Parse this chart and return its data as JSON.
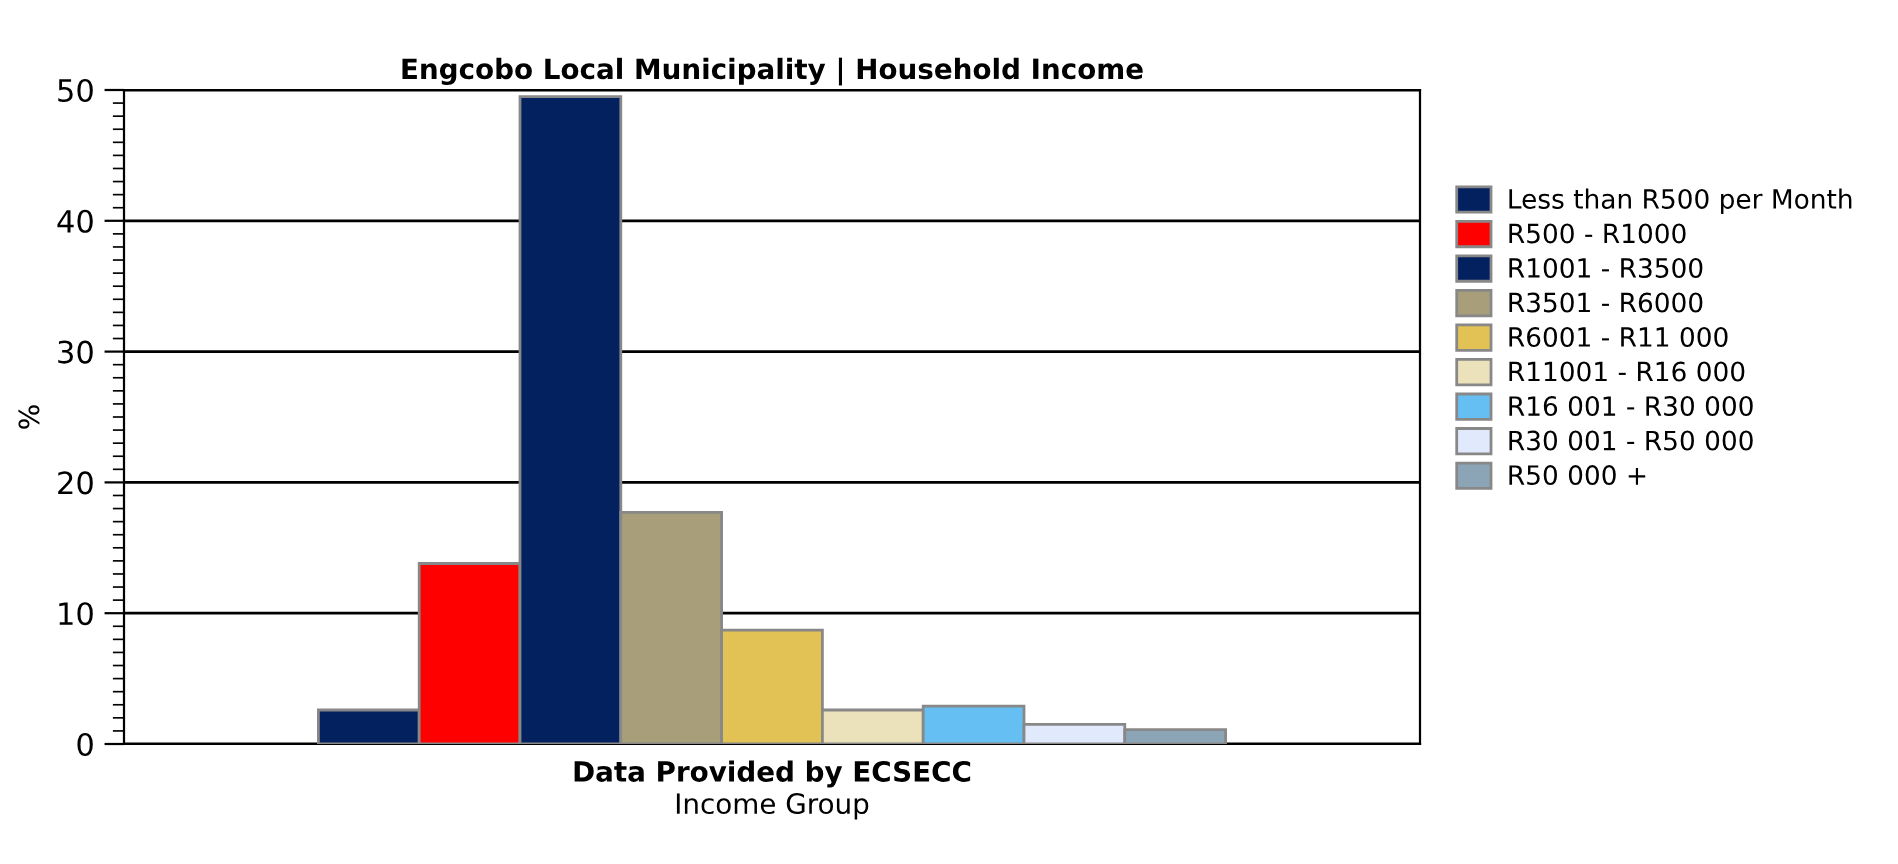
{
  "chart_data": {
    "type": "bar",
    "title": "Engcobo Local Municipality | Household Income",
    "xlabel": "Income Group",
    "ylabel": "%",
    "categories": [
      null
    ],
    "series": [
      {
        "name": "Less than R500 per Month",
        "color": "#03215f",
        "values": [
          2.6
        ]
      },
      {
        "name": "R500 - R1000",
        "color": "#ff0000",
        "values": [
          13.8
        ]
      },
      {
        "name": "R1001 - R3500",
        "color": "#03215f",
        "values": [
          49.5
        ]
      },
      {
        "name": "R3501 - R6000",
        "color": "#a89f7a",
        "values": [
          17.7
        ]
      },
      {
        "name": "R6001 - R11 000",
        "color": "#e2c155",
        "values": [
          8.7
        ]
      },
      {
        "name": "R11001 - R16 000",
        "color": "#ebe2bb",
        "values": [
          2.6
        ]
      },
      {
        "name": "R16 001 - R30 000",
        "color": "#66bff3",
        "values": [
          2.9
        ]
      },
      {
        "name": "R30 001 - R50 000",
        "color": "#e1eafc",
        "values": [
          1.5
        ]
      },
      {
        "name": "R50 000 +",
        "color": "#8ba5b7",
        "values": [
          1.1
        ]
      }
    ],
    "annotations": [
      "Data Provided by ECSECC"
    ],
    "ylim": [
      0,
      50
    ],
    "yticks": [
      0,
      10,
      20,
      30,
      40,
      50
    ],
    "grid": "y",
    "legend": "right"
  }
}
